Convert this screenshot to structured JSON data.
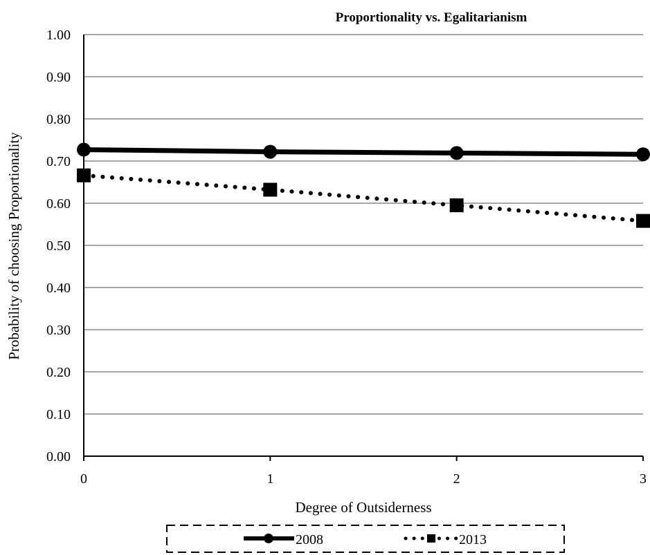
{
  "chart_data": {
    "type": "line",
    "title": "Proportionality vs. Egalitarianism",
    "xlabel": "Degree of Outsiderness",
    "ylabel": "Probability of choosing Proportionality",
    "x": [
      0,
      1,
      2,
      3
    ],
    "x_tick_labels": [
      "0",
      "1",
      "2",
      "3"
    ],
    "ylim": [
      0,
      1
    ],
    "y_tick_labels": [
      "0.00",
      "0.10",
      "0.20",
      "0.30",
      "0.40",
      "0.50",
      "0.60",
      "0.70",
      "0.80",
      "0.90",
      "1.00"
    ],
    "grid": "horizontal",
    "legend_position": "bottom",
    "series": [
      {
        "name": "2008",
        "values": [
          0.727,
          0.722,
          0.719,
          0.716
        ],
        "color": "#000000",
        "line_style": "solid",
        "marker": "circle"
      },
      {
        "name": "2013",
        "values": [
          0.666,
          0.632,
          0.595,
          0.558
        ],
        "color": "#000000",
        "line_style": "dotted",
        "marker": "square"
      }
    ]
  }
}
